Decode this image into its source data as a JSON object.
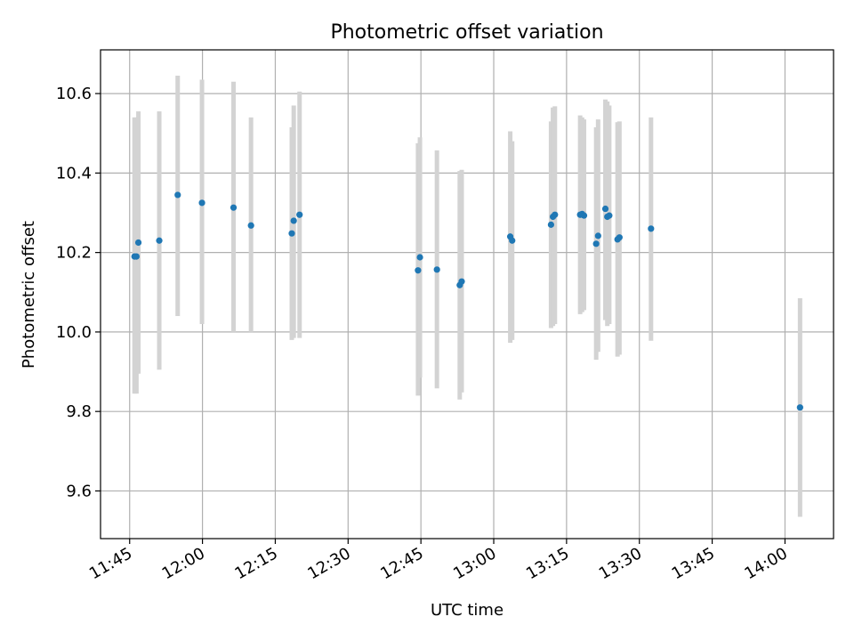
{
  "chart_data": {
    "type": "scatter",
    "title": "Photometric offset variation",
    "xlabel": "UTC time",
    "ylabel": "Photometric offset",
    "xlim": [
      "11:39",
      "14:10"
    ],
    "ylim": [
      9.48,
      10.71
    ],
    "xticks": [
      "11:45",
      "12:00",
      "12:15",
      "12:30",
      "12:45",
      "13:00",
      "13:15",
      "13:30",
      "13:45",
      "14:00"
    ],
    "yticks": [
      "9.6",
      "9.8",
      "10.0",
      "10.2",
      "10.4",
      "10.6"
    ],
    "grid": true,
    "legend": "none",
    "colors": {
      "points": "#1f77b4",
      "errorbars": "#d3d3d3",
      "grid": "#b0b0b0"
    },
    "points": [
      {
        "x": "11:46:00",
        "y": 10.19,
        "lo": 9.845,
        "hi": 10.54
      },
      {
        "x": "11:46:24",
        "y": 10.19,
        "lo": 9.845,
        "hi": 10.54
      },
      {
        "x": "11:46:48",
        "y": 10.225,
        "lo": 9.895,
        "hi": 10.555
      },
      {
        "x": "11:51:06",
        "y": 10.23,
        "lo": 9.905,
        "hi": 10.555
      },
      {
        "x": "11:54:54",
        "y": 10.345,
        "lo": 10.04,
        "hi": 10.645
      },
      {
        "x": "11:59:54",
        "y": 10.325,
        "lo": 10.02,
        "hi": 10.635
      },
      {
        "x": "12:06:24",
        "y": 10.313,
        "lo": 10.0,
        "hi": 10.63
      },
      {
        "x": "12:10:00",
        "y": 10.268,
        "lo": 10.0,
        "hi": 10.54
      },
      {
        "x": "12:18:24",
        "y": 10.248,
        "lo": 9.98,
        "hi": 10.515
      },
      {
        "x": "12:18:48",
        "y": 10.28,
        "lo": 9.985,
        "hi": 10.57
      },
      {
        "x": "12:20:00",
        "y": 10.295,
        "lo": 9.985,
        "hi": 10.605
      },
      {
        "x": "12:44:24",
        "y": 10.155,
        "lo": 9.84,
        "hi": 10.475
      },
      {
        "x": "12:44:48",
        "y": 10.188,
        "lo": 9.885,
        "hi": 10.49
      },
      {
        "x": "12:48:18",
        "y": 10.157,
        "lo": 9.858,
        "hi": 10.457
      },
      {
        "x": "12:53:00",
        "y": 10.118,
        "lo": 9.83,
        "hi": 10.405
      },
      {
        "x": "12:53:24",
        "y": 10.127,
        "lo": 9.848,
        "hi": 10.408
      },
      {
        "x": "13:03:24",
        "y": 10.24,
        "lo": 9.973,
        "hi": 10.505
      },
      {
        "x": "13:03:48",
        "y": 10.23,
        "lo": 9.98,
        "hi": 10.48
      },
      {
        "x": "13:11:48",
        "y": 10.27,
        "lo": 10.01,
        "hi": 10.53
      },
      {
        "x": "13:12:12",
        "y": 10.29,
        "lo": 10.015,
        "hi": 10.565
      },
      {
        "x": "13:12:36",
        "y": 10.295,
        "lo": 10.02,
        "hi": 10.568
      },
      {
        "x": "13:17:48",
        "y": 10.295,
        "lo": 10.045,
        "hi": 10.545
      },
      {
        "x": "13:18:12",
        "y": 10.297,
        "lo": 10.05,
        "hi": 10.54
      },
      {
        "x": "13:18:36",
        "y": 10.293,
        "lo": 10.055,
        "hi": 10.535
      },
      {
        "x": "13:21:06",
        "y": 10.222,
        "lo": 9.93,
        "hi": 10.515
      },
      {
        "x": "13:21:30",
        "y": 10.242,
        "lo": 9.95,
        "hi": 10.535
      },
      {
        "x": "13:23:00",
        "y": 10.31,
        "lo": 10.03,
        "hi": 10.585
      },
      {
        "x": "13:23:24",
        "y": 10.29,
        "lo": 10.015,
        "hi": 10.58
      },
      {
        "x": "13:23:48",
        "y": 10.293,
        "lo": 10.02,
        "hi": 10.57
      },
      {
        "x": "13:25:30",
        "y": 10.233,
        "lo": 9.938,
        "hi": 10.528
      },
      {
        "x": "13:25:54",
        "y": 10.238,
        "lo": 9.943,
        "hi": 10.53
      },
      {
        "x": "13:32:24",
        "y": 10.26,
        "lo": 9.978,
        "hi": 10.54
      },
      {
        "x": "14:03:06",
        "y": 9.81,
        "lo": 9.535,
        "hi": 10.085
      }
    ]
  }
}
